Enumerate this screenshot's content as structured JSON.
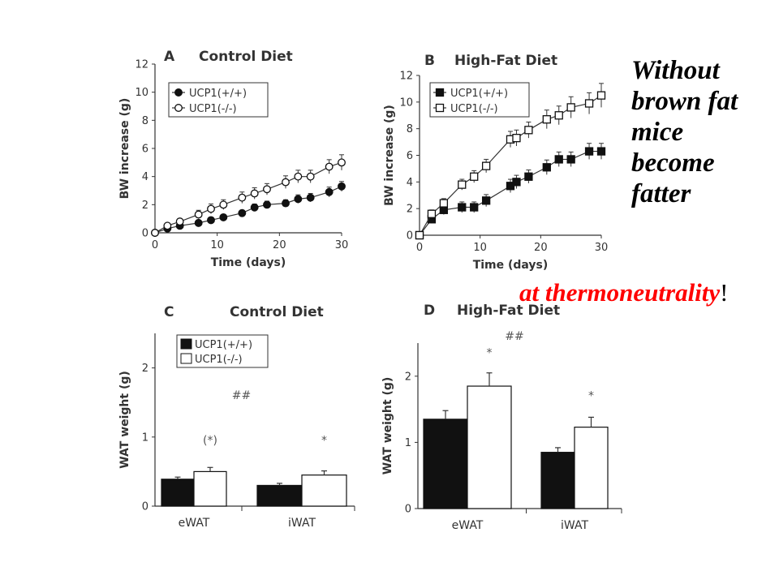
{
  "caption": {
    "lines": [
      "Without",
      "brown fat",
      "mice",
      "become",
      "fatter"
    ],
    "note": "at thermoneutrality",
    "note_suffix": "!",
    "note_color": "#ff0000"
  },
  "colors": {
    "ink": "#333333",
    "filled": "#111111",
    "open": "#ffffff"
  },
  "chart_data": [
    {
      "id": "A",
      "type": "line",
      "panel_letter": "A",
      "title": "Control Diet",
      "xlabel": "Time (days)",
      "ylabel": "BW increase (g)",
      "xlim": [
        0,
        30
      ],
      "ylim": [
        0,
        12
      ],
      "xticks": [
        0,
        10,
        20,
        30
      ],
      "yticks": [
        0,
        2,
        4,
        6,
        8,
        10,
        12
      ],
      "marker": "circle",
      "legend_position": "top-left",
      "series": [
        {
          "name": "UCP1(+/+)",
          "fill": "filled",
          "x": [
            0,
            2,
            4,
            7,
            9,
            11,
            14,
            16,
            18,
            21,
            23,
            25,
            28,
            30
          ],
          "y": [
            0,
            0.3,
            0.5,
            0.7,
            0.9,
            1.1,
            1.4,
            1.8,
            2.0,
            2.1,
            2.4,
            2.5,
            2.9,
            3.3
          ],
          "err": [
            0.1,
            0.15,
            0.15,
            0.2,
            0.2,
            0.2,
            0.2,
            0.25,
            0.25,
            0.25,
            0.3,
            0.3,
            0.35,
            0.35
          ]
        },
        {
          "name": "UCP1(-/-)",
          "fill": "open",
          "x": [
            0,
            2,
            4,
            7,
            9,
            11,
            14,
            16,
            18,
            21,
            23,
            25,
            28,
            30
          ],
          "y": [
            0,
            0.5,
            0.8,
            1.3,
            1.7,
            2.0,
            2.5,
            2.8,
            3.1,
            3.6,
            4.0,
            4.0,
            4.7,
            5.0
          ],
          "err": [
            0.1,
            0.15,
            0.2,
            0.3,
            0.35,
            0.35,
            0.4,
            0.4,
            0.4,
            0.45,
            0.45,
            0.45,
            0.5,
            0.55
          ]
        }
      ]
    },
    {
      "id": "B",
      "type": "line",
      "panel_letter": "B",
      "title": "High-Fat Diet",
      "xlabel": "Time (days)",
      "ylabel": "BW increase (g)",
      "xlim": [
        0,
        30
      ],
      "ylim": [
        0,
        12
      ],
      "xticks": [
        0,
        10,
        20,
        30
      ],
      "yticks": [
        0,
        2,
        4,
        6,
        8,
        10,
        12
      ],
      "marker": "square",
      "legend_position": "top-left",
      "series": [
        {
          "name": "UCP1(+/+)",
          "fill": "filled",
          "x": [
            0,
            2,
            4,
            7,
            9,
            11,
            15,
            16,
            18,
            21,
            23,
            25,
            28,
            30
          ],
          "y": [
            0,
            1.2,
            1.9,
            2.1,
            2.1,
            2.6,
            3.7,
            4.0,
            4.4,
            5.1,
            5.7,
            5.7,
            6.3,
            6.3
          ],
          "err": [
            0.1,
            0.3,
            0.35,
            0.4,
            0.4,
            0.45,
            0.5,
            0.5,
            0.5,
            0.55,
            0.55,
            0.55,
            0.6,
            0.6
          ]
        },
        {
          "name": "UCP1(-/-)",
          "fill": "open",
          "x": [
            0,
            2,
            4,
            7,
            9,
            11,
            15,
            16,
            18,
            21,
            23,
            25,
            28,
            30
          ],
          "y": [
            0,
            1.6,
            2.4,
            3.8,
            4.4,
            5.2,
            7.2,
            7.3,
            7.9,
            8.7,
            9.0,
            9.6,
            9.9,
            10.5
          ],
          "err": [
            0.1,
            0.3,
            0.35,
            0.4,
            0.45,
            0.5,
            0.6,
            0.6,
            0.6,
            0.7,
            0.7,
            0.8,
            0.8,
            0.9
          ]
        }
      ]
    },
    {
      "id": "C",
      "type": "bar",
      "panel_letter": "C",
      "title": "Control Diet",
      "xlabel": "",
      "ylabel": "WAT weight (g)",
      "categories": [
        "eWAT",
        "iWAT"
      ],
      "ylim": [
        0,
        2.5
      ],
      "yticks": [
        0,
        1,
        2
      ],
      "legend_position": "top-left",
      "series": [
        {
          "name": "UCP1(+/+)",
          "fill": "filled",
          "values": [
            0.39,
            0.3
          ],
          "err": [
            0.03,
            0.03
          ]
        },
        {
          "name": "UCP1(-/-)",
          "fill": "open",
          "values": [
            0.5,
            0.45
          ],
          "err": [
            0.06,
            0.06
          ]
        }
      ],
      "annotations": [
        {
          "text": "(*)",
          "category": 0,
          "series": 1,
          "y": 0.9
        },
        {
          "text": "*",
          "category": 1,
          "series": 1,
          "y": 0.9
        },
        {
          "text": "##",
          "category": 0.5,
          "series": 0.5,
          "y": 1.55
        }
      ]
    },
    {
      "id": "D",
      "type": "bar",
      "panel_letter": "D",
      "title": "High-Fat Diet",
      "xlabel": "",
      "ylabel": "WAT weight (g)",
      "categories": [
        "eWAT",
        "iWAT"
      ],
      "ylim": [
        0,
        2.5
      ],
      "yticks": [
        0,
        1,
        2
      ],
      "legend_position": "none",
      "series": [
        {
          "name": "UCP1(+/+)",
          "fill": "filled",
          "values": [
            1.35,
            0.85
          ],
          "err": [
            0.13,
            0.07
          ]
        },
        {
          "name": "UCP1(-/-)",
          "fill": "open",
          "values": [
            1.85,
            1.23
          ],
          "err": [
            0.2,
            0.15
          ]
        }
      ],
      "annotations": [
        {
          "text": "*",
          "category": 0,
          "series": 1,
          "y": 2.3
        },
        {
          "text": "*",
          "category": 1,
          "series": 1,
          "y": 1.65
        },
        {
          "text": "##",
          "category": 0.5,
          "series": 0.5,
          "y": 2.55
        }
      ]
    }
  ]
}
